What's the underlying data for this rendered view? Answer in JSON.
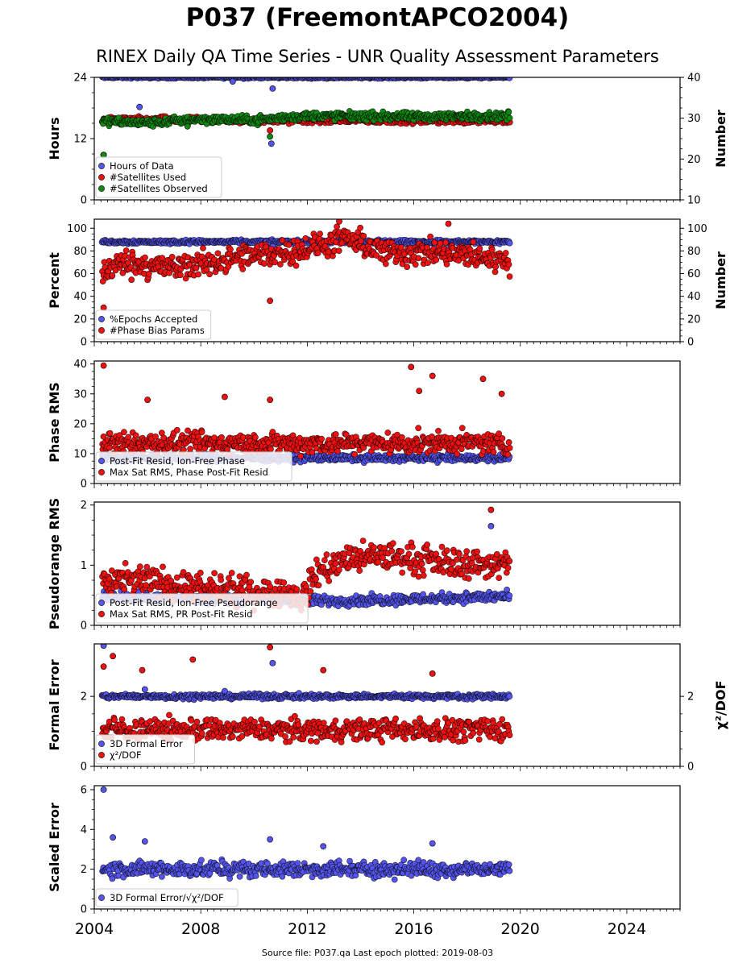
{
  "header": {
    "title": "P037 (FreemontAPCO2004)",
    "subtitle": "RINEX Daily QA Time Series - UNR Quality Assessment Parameters"
  },
  "footer": {
    "text": "Source file: P037.qa Last epoch plotted: 2019-08-03"
  },
  "colors": {
    "blue": "#5555ee",
    "red": "#ee1111",
    "green": "#118811"
  },
  "chart_data": [
    {
      "type": "scatter",
      "ylabel": "Hours",
      "ylabel_right": "Number",
      "xlim": [
        2004,
        2026
      ],
      "ylim": [
        0,
        24
      ],
      "yticks": [
        0,
        12,
        24
      ],
      "ylim_right": [
        10,
        40
      ],
      "yticks_right": [
        10,
        20,
        30,
        40
      ],
      "legend_position": "lower-left",
      "series": [
        {
          "name": "Hours of Data",
          "color": "blue",
          "axis": "left",
          "base": 24,
          "noise": 0.15,
          "outliers": [
            [
              2004.35,
              8.8
            ],
            [
              2005.7,
              18.2
            ],
            [
              2009.2,
              23.2
            ],
            [
              2010.65,
              11.0
            ],
            [
              2010.7,
              21.8
            ]
          ]
        },
        {
          "name": "#Satellites Used",
          "color": "red",
          "axis": "right",
          "base": 29.5,
          "noise": 0.6,
          "outliers": [
            [
              2004.35,
              21
            ],
            [
              2010.6,
              27
            ],
            [
              2008.9,
              30.2
            ]
          ]
        },
        {
          "name": "#Satellites Observed",
          "color": "green",
          "axis": "right",
          "base": 29.5,
          "noise": 0.7,
          "trend": [
            [
              2004.3,
              29.2
            ],
            [
              2006,
              28.8
            ],
            [
              2008,
              29.8
            ],
            [
              2010,
              29.5
            ],
            [
              2012,
              30.6
            ],
            [
              2016,
              30.4
            ],
            [
              2019.6,
              30.6
            ]
          ],
          "outliers": [
            [
              2004.35,
              21
            ],
            [
              2007.5,
              28
            ],
            [
              2010.6,
              25.5
            ]
          ]
        }
      ]
    },
    {
      "type": "scatter",
      "ylabel": "Percent",
      "ylabel_right": "Number",
      "xlim": [
        2004,
        2026
      ],
      "ylim": [
        0,
        108
      ],
      "yticks": [
        0,
        20,
        40,
        60,
        80,
        100
      ],
      "ylim_right": [
        0,
        108
      ],
      "yticks_right": [
        0,
        20,
        40,
        60,
        80,
        100
      ],
      "legend_position": "lower-left",
      "series": [
        {
          "name": "%Epochs Accepted",
          "color": "blue",
          "axis": "left",
          "base": 88,
          "noise": 1.2,
          "outliers": [
            [
              2010.7,
              84
            ]
          ]
        },
        {
          "name": "#Phase Bias Params",
          "color": "red",
          "axis": "right",
          "base": 72,
          "noise": 8,
          "trend": [
            [
              2004.3,
              60
            ],
            [
              2005,
              70
            ],
            [
              2007,
              65
            ],
            [
              2009,
              72
            ],
            [
              2012,
              82
            ],
            [
              2013.5,
              90
            ],
            [
              2015,
              78
            ],
            [
              2017,
              78
            ],
            [
              2019.6,
              72
            ]
          ],
          "outliers": [
            [
              2004.35,
              30
            ],
            [
              2010.6,
              36
            ],
            [
              2013.2,
              106
            ],
            [
              2017.3,
              104
            ]
          ]
        }
      ]
    },
    {
      "type": "scatter",
      "ylabel": "Phase RMS",
      "xlim": [
        2004,
        2026
      ],
      "ylim": [
        0,
        41
      ],
      "yticks": [
        0,
        10,
        20,
        30,
        40
      ],
      "legend_position": "lower-left",
      "series": [
        {
          "name": "Post-Fit Resid, Ion-Free Phase",
          "color": "blue",
          "axis": "left",
          "base": 8.5,
          "noise": 0.8,
          "outliers": []
        },
        {
          "name": "Max Sat RMS, Phase Post-Fit Resid",
          "color": "red",
          "axis": "left",
          "base": 13.5,
          "noise": 2.5,
          "outliers": [
            [
              2004.35,
              39.5
            ],
            [
              2015.9,
              39
            ],
            [
              2016.7,
              36
            ],
            [
              2018.6,
              35
            ],
            [
              2016.2,
              31
            ],
            [
              2019.3,
              30
            ],
            [
              2010.6,
              28
            ],
            [
              2006,
              28
            ],
            [
              2008.9,
              29
            ]
          ]
        }
      ]
    },
    {
      "type": "scatter",
      "ylabel": "Pseudorange RMS",
      "xlim": [
        2004,
        2026
      ],
      "ylim": [
        0,
        2.05
      ],
      "yticks": [
        0,
        1,
        2
      ],
      "legend_position": "lower-left",
      "series": [
        {
          "name": "Post-Fit Resid, Ion-Free Pseudorange",
          "color": "blue",
          "axis": "left",
          "base": 0.45,
          "noise": 0.06,
          "trend": [
            [
              2004.3,
              0.48
            ],
            [
              2011.5,
              0.42
            ],
            [
              2012.5,
              0.4
            ],
            [
              2019.6,
              0.48
            ]
          ],
          "outliers": [
            [
              2018.9,
              1.65
            ]
          ]
        },
        {
          "name": "Max Sat RMS, PR Post-Fit Resid",
          "color": "red",
          "axis": "left",
          "base": 0.7,
          "noise": 0.17,
          "trend": [
            [
              2004.3,
              0.7
            ],
            [
              2006,
              0.75
            ],
            [
              2008,
              0.6
            ],
            [
              2011,
              0.55
            ],
            [
              2011.8,
              0.45
            ],
            [
              2012.4,
              0.9
            ],
            [
              2013.5,
              1.1
            ],
            [
              2015,
              1.15
            ],
            [
              2017,
              1.05
            ],
            [
              2019.6,
              1.0
            ]
          ],
          "outliers": [
            [
              2018.9,
              1.92
            ]
          ]
        }
      ]
    },
    {
      "type": "scatter",
      "ylabel": "Formal Error",
      "ylabel_right": "χ²/DOF",
      "xlim": [
        2004,
        2026
      ],
      "ylim": [
        0,
        3.5
      ],
      "yticks": [
        0,
        2
      ],
      "ylim_right": [
        0,
        3.5
      ],
      "yticks_right": [
        0,
        2
      ],
      "legend_position": "lower-left",
      "series": [
        {
          "name": "3D Formal Error",
          "color": "blue",
          "axis": "left",
          "base": 2.0,
          "noise": 0.05,
          "outliers": [
            [
              2004.35,
              3.45
            ],
            [
              2010.7,
              2.95
            ],
            [
              2005.9,
              2.2
            ],
            [
              2008.9,
              2.15
            ]
          ]
        },
        {
          "name": "χ²/DOF",
          "color": "red",
          "axis": "right",
          "base": 1.05,
          "noise": 0.22,
          "outliers": [
            [
              2004.35,
              2.85
            ],
            [
              2004.7,
              3.15
            ],
            [
              2010.6,
              3.4
            ],
            [
              2005.8,
              2.75
            ],
            [
              2007.7,
              3.05
            ],
            [
              2012.6,
              2.75
            ],
            [
              2016.7,
              2.65
            ]
          ]
        }
      ]
    },
    {
      "type": "scatter",
      "ylabel": "Scaled Error",
      "xlim": [
        2004,
        2026
      ],
      "ylim": [
        0,
        6.2
      ],
      "yticks": [
        0,
        2,
        4,
        6
      ],
      "xticks": [
        2004,
        2008,
        2012,
        2016,
        2020,
        2024
      ],
      "legend_position": "lower-left",
      "series": [
        {
          "name": "3D Formal Error/√χ²/DOF",
          "color": "blue",
          "axis": "left",
          "base": 2.0,
          "noise": 0.28,
          "outliers": [
            [
              2004.35,
              6.0
            ],
            [
              2004.7,
              3.6
            ],
            [
              2010.6,
              3.5
            ],
            [
              2012.6,
              3.15
            ],
            [
              2016.7,
              3.3
            ],
            [
              2005.9,
              3.4
            ]
          ]
        }
      ]
    }
  ]
}
